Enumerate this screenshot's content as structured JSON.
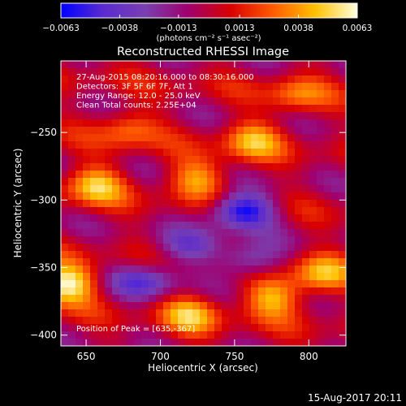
{
  "chart_data": {
    "type": "heatmap",
    "title": "Reconstructed RHESSI Image",
    "xlabel": "Heliocentric X (arcsec)",
    "ylabel": "Heliocentric Y (arcsec)",
    "xlim": [
      633,
      825
    ],
    "ylim": [
      -408,
      -197
    ],
    "xticks": [
      650,
      700,
      750,
      800
    ],
    "yticks": [
      -250,
      -300,
      -350,
      -400
    ],
    "xtick_labels": [
      "650",
      "700",
      "750",
      "800"
    ],
    "ytick_labels": [
      "−250",
      "−300",
      "−350",
      "−400"
    ],
    "colorbar": {
      "min": -0.0063,
      "max": 0.0063,
      "tick_values": [
        -0.0063,
        -0.0038,
        -0.0013,
        0.0013,
        0.0038,
        0.0063
      ],
      "tick_labels": [
        "−0.0063",
        "−0.0038",
        "−0.0013",
        "0.0013",
        "0.0038",
        "0.0063"
      ],
      "unit_label": "(photons cm⁻² s⁻¹ asec⁻²)",
      "colors": [
        "#0000ff",
        "#5a2bd0",
        "#7a3fb0",
        "#a0006e",
        "#d80000",
        "#ff5a00",
        "#ffc000",
        "#ffffe0"
      ]
    },
    "annotations": [
      "27-Aug-2015 08:20:16.000 to 08:30:16.000",
      "Detectors: 3F 5F 6F 7F, Att 1",
      "Energy Range: 12.0 - 25.0 keV",
      "Clean     Total counts: 2.25E+04"
    ],
    "peak_label": "Position of Peak = [635,-367]",
    "peak_position": [
      635,
      -367
    ],
    "emission_sources": [
      {
        "x": 637,
        "y": -362,
        "value": 0.0063
      },
      {
        "x": 656,
        "y": -289,
        "value": 0.0045
      },
      {
        "x": 678,
        "y": -247,
        "value": 0.003
      },
      {
        "x": 725,
        "y": -284,
        "value": 0.004
      },
      {
        "x": 762,
        "y": -256,
        "value": 0.004
      },
      {
        "x": 792,
        "y": -222,
        "value": 0.003
      },
      {
        "x": 720,
        "y": -385,
        "value": 0.004
      },
      {
        "x": 776,
        "y": -372,
        "value": 0.0045
      },
      {
        "x": 808,
        "y": -355,
        "value": 0.004
      }
    ],
    "negative_regions": [
      {
        "x": 755,
        "y": -308,
        "value": -0.0063
      },
      {
        "x": 690,
        "y": -360,
        "value": -0.0038
      },
      {
        "x": 718,
        "y": -335,
        "value": -0.003
      },
      {
        "x": 760,
        "y": -345,
        "value": -0.0038
      }
    ]
  },
  "footer": {
    "date": "15-Aug-2017 20:11"
  }
}
